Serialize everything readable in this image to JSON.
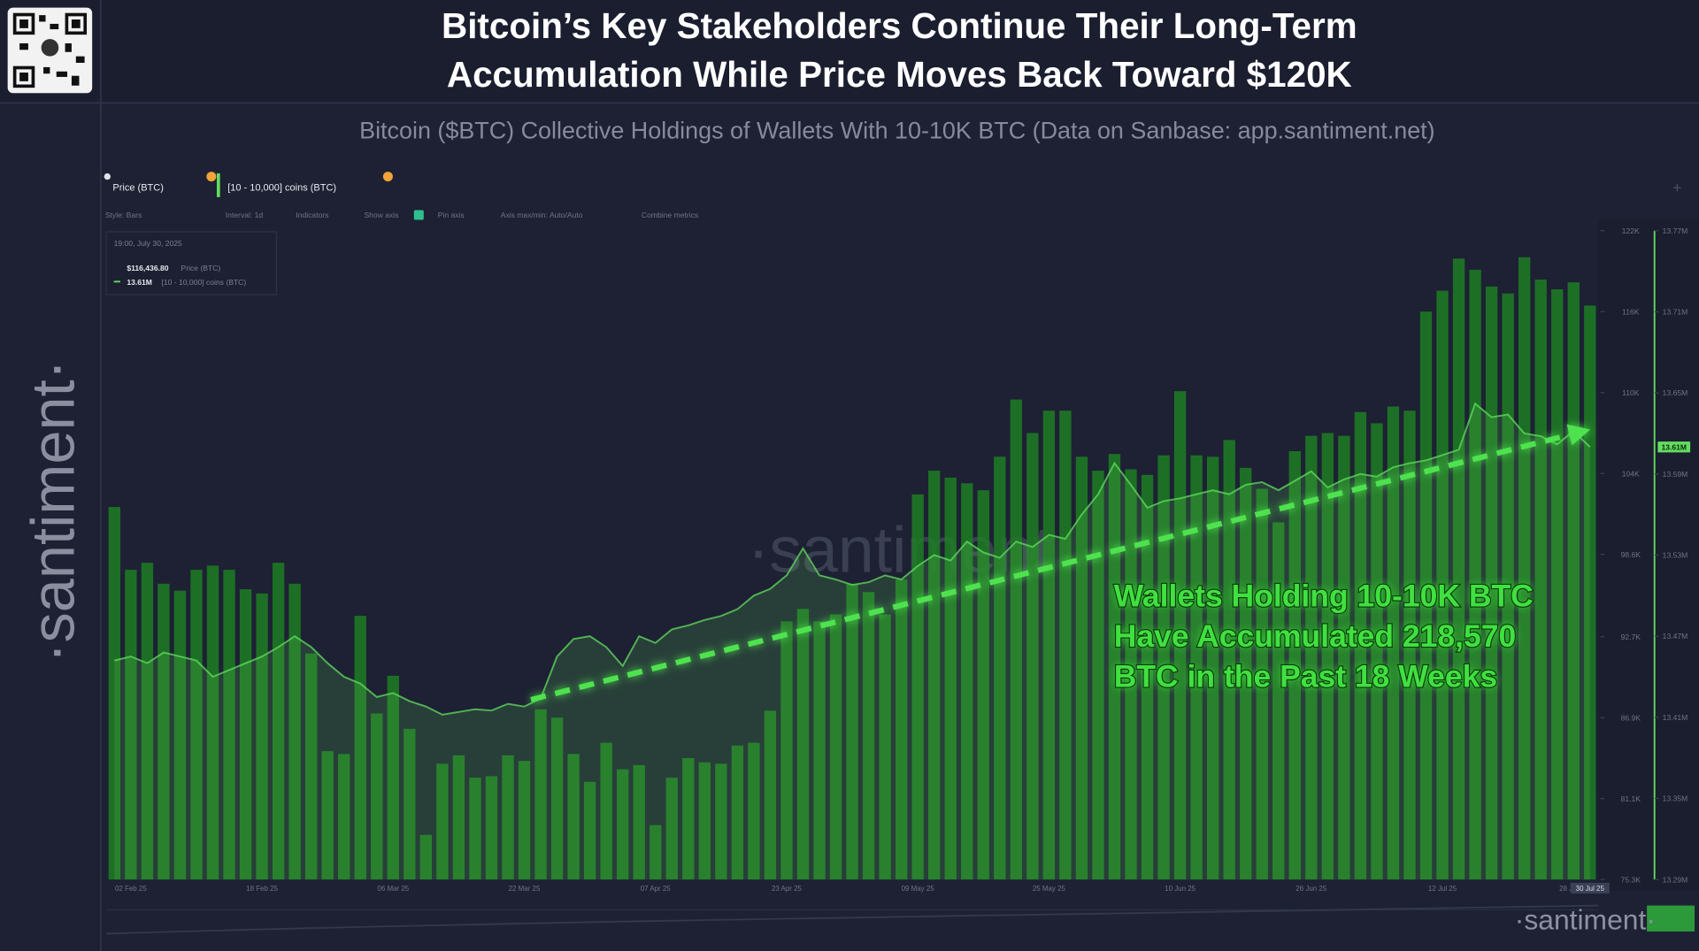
{
  "chart_data": {
    "type": "bar",
    "title": [
      "Bitcoin’s Key Stakeholders Continue Their Long-Term",
      "Accumulation While Price Moves Back Toward $120K"
    ],
    "subtitle": "Bitcoin ($BTC) Collective Holdings of Wallets With 10-10K BTC (Data on Sanbase: app.santiment.net)",
    "toolbar": [
      "Style: Bars",
      "Interval: 1d",
      "Indicators",
      "Show axis",
      "Pin axis",
      "Axis max/min: Auto/Auto",
      "Combine metrics"
    ],
    "tooltip": {
      "date": "19:00, July 30, 2025",
      "price": "$116,436.80",
      "holdings": "13.61M"
    },
    "annotation": [
      "Wallets Holding 10-10K BTC",
      "Have Accumulated 218,570",
      "BTC in the Past 18 Weeks"
    ],
    "branding": "·santiment·",
    "watermark": "·santiment",
    "grid": false,
    "categories": [
      null,
      "02 Feb 25",
      null,
      null,
      null,
      null,
      null,
      null,
      null,
      "18 Feb 25",
      null,
      null,
      null,
      null,
      null,
      null,
      null,
      "06 Mar 25",
      null,
      null,
      null,
      null,
      null,
      null,
      null,
      "22 Mar 25",
      null,
      null,
      null,
      null,
      null,
      null,
      null,
      "07 Apr 25",
      null,
      null,
      null,
      null,
      null,
      null,
      null,
      "23 Apr 25",
      null,
      null,
      null,
      null,
      null,
      null,
      null,
      "09 May 25",
      null,
      null,
      null,
      null,
      null,
      null,
      null,
      "25 May 25",
      null,
      null,
      null,
      null,
      null,
      null,
      null,
      "10 Jun 25",
      null,
      null,
      null,
      null,
      null,
      null,
      null,
      "26 Jun 25",
      null,
      null,
      null,
      null,
      null,
      null,
      null,
      "12 Jul 25",
      null,
      null,
      null,
      null,
      null,
      null,
      null,
      "28 Jul 25",
      "30 Jul 25"
    ],
    "series": [
      {
        "name": "Price (BTC)",
        "color": "#1f7d25",
        "values": [
          102000,
          97500,
          98000,
          96500,
          96000,
          97500,
          97800,
          97500,
          96100,
          95800,
          98000,
          96500,
          91500,
          84500,
          84300,
          94200,
          87200,
          89900,
          86100,
          78500,
          83600,
          84200,
          82600,
          82700,
          84200,
          83800,
          87500,
          86900,
          84300,
          82300,
          85100,
          83200,
          83500,
          79200,
          82600,
          84000,
          83700,
          83600,
          84900,
          85100,
          87400,
          93800,
          94700,
          93800,
          94300,
          96500,
          95900,
          94300,
          96800,
          102900,
          104600,
          104100,
          103700,
          103200,
          105600,
          109700,
          107300,
          108900,
          108900,
          105600,
          104600,
          105800,
          104700,
          104300,
          105700,
          110300,
          105700,
          105600,
          106800,
          104800,
          103300,
          100900,
          106000,
          107100,
          107300,
          107100,
          108800,
          108000,
          109200,
          108900,
          116000,
          117500,
          119800,
          119000,
          117800,
          117300,
          119900,
          118300,
          117600,
          118100,
          116436.8
        ]
      },
      {
        "name": "[10 - 10,000] coins (BTC)",
        "color": "#63dd5f",
        "type": "line",
        "axis": "y2",
        "values": [
          13452000,
          13455000,
          13450000,
          13458000,
          13455000,
          13452000,
          13440000,
          13445000,
          13450000,
          13455000,
          13462000,
          13470000,
          13462000,
          13450000,
          13440000,
          13435000,
          13425000,
          13428000,
          13422000,
          13418000,
          13412000,
          13414000,
          13416000,
          13415000,
          13420000,
          13418000,
          13424000,
          13455000,
          13468000,
          13470000,
          13462000,
          13448000,
          13470000,
          13465000,
          13475000,
          13478000,
          13482000,
          13485000,
          13490000,
          13500000,
          13505000,
          13515000,
          13535000,
          13515000,
          13512000,
          13508000,
          13510000,
          13515000,
          13512000,
          13522000,
          13530000,
          13526000,
          13540000,
          13532000,
          13528000,
          13540000,
          13536000,
          13545000,
          13542000,
          13560000,
          13575000,
          13598000,
          13582000,
          13565000,
          13570000,
          13572000,
          13575000,
          13578000,
          13575000,
          13582000,
          13584000,
          13578000,
          13585000,
          13592000,
          13580000,
          13586000,
          13590000,
          13588000,
          13595000,
          13598000,
          13600000,
          13604000,
          13608000,
          13642000,
          13632000,
          13634000,
          13620000,
          13618000,
          13612000,
          13622000,
          13610000
        ]
      }
    ],
    "ylim": [
      75300,
      121800
    ],
    "yticks": [
      {
        "value": 75300,
        "label": "75.3K"
      },
      {
        "value": 81100,
        "label": "81.1K"
      },
      {
        "value": 86900,
        "label": "86.9K"
      },
      {
        "value": 92700,
        "label": "92.7K"
      },
      {
        "value": 98600,
        "label": "98.6K"
      },
      {
        "value": 104400,
        "label": "104K"
      },
      {
        "value": 110200,
        "label": "110K"
      },
      {
        "value": 116000,
        "label": "116K"
      },
      {
        "value": 121800,
        "label": "122K"
      }
    ],
    "y2lim": [
      13290000,
      13770000
    ],
    "y2ticks": [
      {
        "value": 13290000,
        "label": "13.29M"
      },
      {
        "value": 13350000,
        "label": "13.35M"
      },
      {
        "value": 13410000,
        "label": "13.41M"
      },
      {
        "value": 13470000,
        "label": "13.47M"
      },
      {
        "value": 13530000,
        "label": "13.53M"
      },
      {
        "value": 13590000,
        "label": "13.59M"
      },
      {
        "value": 13650000,
        "label": "13.65M"
      },
      {
        "value": 13710000,
        "label": "13.71M"
      },
      {
        "value": 13770000,
        "label": "13.77M"
      }
    ]
  }
}
